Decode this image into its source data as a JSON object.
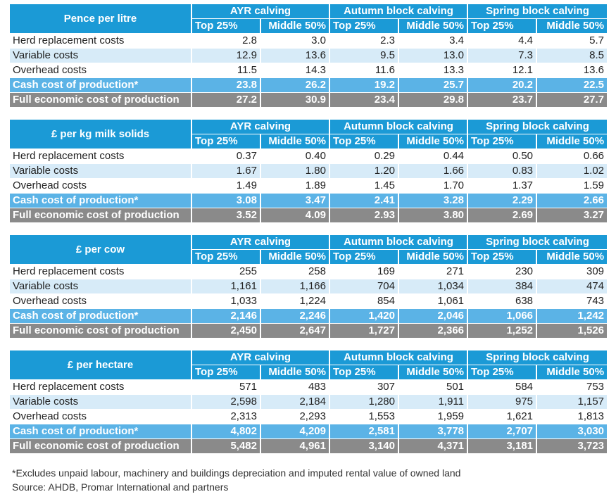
{
  "groups": [
    "AYR calving",
    "Autumn block calving",
    "Spring block calving"
  ],
  "sub_headers": [
    "Top 25%",
    "Middle 50%"
  ],
  "tables": [
    {
      "title": "Pence per litre",
      "rows": [
        {
          "label": "Herd replacement costs",
          "values": [
            "2.8",
            "3.0",
            "2.3",
            "3.4",
            "4.4",
            "5.7"
          ]
        },
        {
          "label": "Variable costs",
          "values": [
            "12.9",
            "13.6",
            "9.5",
            "13.0",
            "7.3",
            "8.5"
          ]
        },
        {
          "label": "Overhead costs",
          "values": [
            "11.5",
            "14.3",
            "11.6",
            "13.3",
            "12.1",
            "13.6"
          ]
        },
        {
          "label": "Cash cost of production*",
          "values": [
            "23.8",
            "26.2",
            "19.2",
            "25.7",
            "20.2",
            "22.5"
          ]
        },
        {
          "label": "Full economic cost of production",
          "values": [
            "27.2",
            "30.9",
            "23.4",
            "29.8",
            "23.7",
            "27.7"
          ]
        }
      ]
    },
    {
      "title": "£ per kg milk solids",
      "rows": [
        {
          "label": "Herd replacement costs",
          "values": [
            "0.37",
            "0.40",
            "0.29",
            "0.44",
            "0.50",
            "0.66"
          ]
        },
        {
          "label": "Variable costs",
          "values": [
            "1.67",
            "1.80",
            "1.20",
            "1.66",
            "0.83",
            "1.02"
          ]
        },
        {
          "label": "Overhead costs",
          "values": [
            "1.49",
            "1.89",
            "1.45",
            "1.70",
            "1.37",
            "1.59"
          ]
        },
        {
          "label": "Cash cost of production*",
          "values": [
            "3.08",
            "3.47",
            "2.41",
            "3.28",
            "2.29",
            "2.66"
          ]
        },
        {
          "label": "Full economic cost of production",
          "values": [
            "3.52",
            "4.09",
            "2.93",
            "3.80",
            "2.69",
            "3.27"
          ]
        }
      ]
    },
    {
      "title": "£ per cow",
      "rows": [
        {
          "label": "Herd replacement costs",
          "values": [
            "255",
            "258",
            "169",
            "271",
            "230",
            "309"
          ]
        },
        {
          "label": "Variable costs",
          "values": [
            "1,161",
            "1,166",
            "704",
            "1,034",
            "384",
            "474"
          ]
        },
        {
          "label": "Overhead costs",
          "values": [
            "1,033",
            "1,224",
            "854",
            "1,061",
            "638",
            "743"
          ]
        },
        {
          "label": "Cash cost of production*",
          "values": [
            "2,146",
            "2,246",
            "1,420",
            "2,046",
            "1,066",
            "1,242"
          ]
        },
        {
          "label": "Full economic cost of production",
          "values": [
            "2,450",
            "2,647",
            "1,727",
            "2,366",
            "1,252",
            "1,526"
          ]
        }
      ]
    },
    {
      "title": "£ per hectare",
      "rows": [
        {
          "label": "Herd replacement costs",
          "values": [
            "571",
            "483",
            "307",
            "501",
            "584",
            "753"
          ]
        },
        {
          "label": "Variable costs",
          "values": [
            "2,598",
            "2,184",
            "1,280",
            "1,911",
            "975",
            "1,157"
          ]
        },
        {
          "label": "Overhead costs",
          "values": [
            "2,313",
            "2,293",
            "1,553",
            "1,959",
            "1,621",
            "1,813"
          ]
        },
        {
          "label": "Cash cost of production*",
          "values": [
            "4,802",
            "4,209",
            "2,581",
            "3,778",
            "2,707",
            "3,030"
          ]
        },
        {
          "label": "Full economic cost of production",
          "values": [
            "5,482",
            "4,961",
            "3,140",
            "4,371",
            "3,181",
            "3,723"
          ]
        }
      ]
    }
  ],
  "footnote": "*Excludes unpaid labour, machinery and buildings depreciation and imputed rental value of owned land",
  "source": "Source: AHDB, Promar International and partners",
  "colors": {
    "header_blue": "#1b9ad6",
    "light_row": "#d7ebf8",
    "cash_row": "#5bb3e6",
    "full_row": "#8a8a8a"
  }
}
